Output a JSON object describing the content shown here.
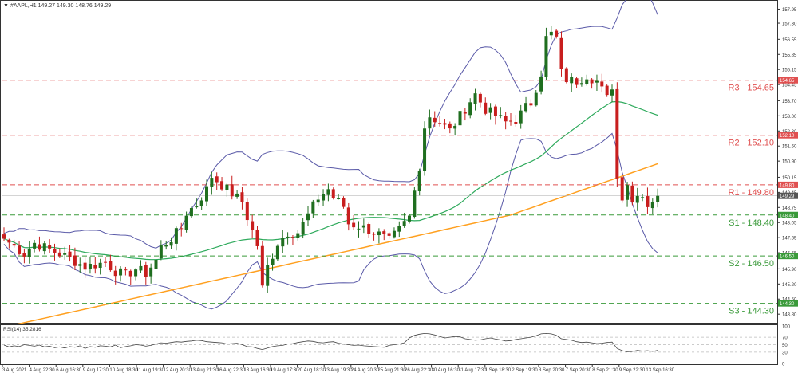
{
  "header": {
    "symbol_info": "#AAPL,H1  149.27 149.30 148.76 149.29",
    "rsi_label": "RSI(14) 35.2816"
  },
  "colors": {
    "up_candle": "#1f6e1f",
    "down_candle": "#c81e1e",
    "resistance": "#e05050",
    "support": "#3a9a3a",
    "bollinger": "#5a5aa8",
    "ma_fast": "#2eaa5c",
    "ma_slow": "#ffa020",
    "rsi_line": "#444444"
  },
  "chart_data": [
    {
      "type": "candlestick",
      "title": "#AAPL,H1",
      "ylim": [
        143.4,
        158.3
      ],
      "y_ticks": [
        157.95,
        157.3,
        156.55,
        155.85,
        155.15,
        154.45,
        153.7,
        153.0,
        152.3,
        151.6,
        150.9,
        150.15,
        149.45,
        148.75,
        148.05,
        147.35,
        146.65,
        145.9,
        145.2,
        144.5,
        143.8
      ],
      "x_tick_labels": [
        "3 Aug 2021",
        "4 Aug 22:30",
        "6 Aug 16:30",
        "9 Aug 17:30",
        "10 Aug 18:30",
        "11 Aug 19:30",
        "12 Aug 20:30",
        "13 Aug 21:30",
        "16 Aug 22:30",
        "18 Aug 16:30",
        "19 Aug 17:30",
        "20 Aug 18:30",
        "23 Aug 19:30",
        "24 Aug 20:30",
        "25 Aug 21:30",
        "26 Aug 22:30",
        "30 Aug 16:30",
        "31 Aug 17:30",
        "1 Sep 18:30",
        "2 Sep 19:30",
        "3 Sep 20:30",
        "7 Sep 20:30",
        "8 Sep 21:30",
        "9 Sep 22:30",
        "13 Sep 16:30"
      ],
      "levels": [
        {
          "label": "R3 - 154.65",
          "value": 154.65,
          "kind": "resistance",
          "tag": "154.65"
        },
        {
          "label": "R2 - 152.10",
          "value": 152.1,
          "kind": "resistance",
          "tag": "152.10"
        },
        {
          "label": "R1 - 149.80",
          "value": 149.8,
          "kind": "resistance",
          "tag": "149.80"
        },
        {
          "label": "S1 - 148.40",
          "value": 148.4,
          "kind": "support",
          "tag": "148.40"
        },
        {
          "label": "S2 - 146.50",
          "value": 146.5,
          "kind": "support",
          "tag": "146.50"
        },
        {
          "label": "S3 - 144.30",
          "value": 144.3,
          "kind": "support",
          "tag": "144.30"
        }
      ],
      "current_price": {
        "value": 149.29,
        "tag": "149.29"
      },
      "close_path": [
        [
          0,
          147.3
        ],
        [
          4,
          146.6
        ],
        [
          6,
          147.1
        ],
        [
          8,
          146.9
        ],
        [
          12,
          146.5
        ],
        [
          16,
          146.0
        ],
        [
          20,
          146.2
        ],
        [
          22,
          145.8
        ],
        [
          24,
          145.6
        ],
        [
          26,
          145.9
        ],
        [
          28,
          145.7
        ],
        [
          30,
          146.3
        ],
        [
          31,
          146.9
        ],
        [
          33,
          147.3
        ],
        [
          35,
          147.8
        ],
        [
          36,
          148.5
        ],
        [
          38,
          148.9
        ],
        [
          40,
          149.6
        ],
        [
          41,
          150.2
        ],
        [
          43,
          149.8
        ],
        [
          45,
          149.4
        ],
        [
          47,
          149.0
        ],
        [
          48,
          148.3
        ],
        [
          50,
          147.0
        ],
        [
          51,
          145.0
        ],
        [
          52,
          146.0
        ],
        [
          54,
          147.1
        ],
        [
          56,
          147.6
        ],
        [
          58,
          147.6
        ],
        [
          59,
          148.0
        ],
        [
          61,
          148.8
        ],
        [
          62,
          149.2
        ],
        [
          64,
          149.6
        ],
        [
          65,
          149.2
        ],
        [
          67,
          148.8
        ],
        [
          68,
          148.0
        ],
        [
          70,
          147.9
        ],
        [
          72,
          147.7
        ],
        [
          74,
          147.5
        ],
        [
          76,
          147.2
        ],
        [
          78,
          147.7
        ],
        [
          80,
          148.3
        ],
        [
          82,
          150.7
        ],
        [
          83,
          152.5
        ],
        [
          84,
          153.0
        ],
        [
          86,
          152.7
        ],
        [
          88,
          152.3
        ],
        [
          90,
          153.0
        ],
        [
          92,
          153.7
        ],
        [
          93,
          154.0
        ],
        [
          95,
          153.3
        ],
        [
          97,
          153.0
        ],
        [
          99,
          152.7
        ],
        [
          101,
          152.8
        ],
        [
          103,
          153.4
        ],
        [
          104,
          153.6
        ],
        [
          106,
          155.0
        ],
        [
          107,
          156.6
        ],
        [
          108,
          156.8
        ],
        [
          109,
          156.6
        ],
        [
          110,
          155.0
        ],
        [
          111,
          154.7
        ],
        [
          113,
          154.6
        ],
        [
          115,
          154.9
        ],
        [
          117,
          154.6
        ],
        [
          119,
          153.8
        ],
        [
          120,
          154.4
        ],
        [
          121,
          150.1
        ],
        [
          122,
          149.3
        ],
        [
          123,
          149.9
        ],
        [
          124,
          149.0
        ],
        [
          125,
          149.5
        ],
        [
          126,
          149.3
        ],
        [
          127,
          148.9
        ],
        [
          129,
          149.29
        ]
      ],
      "series": [
        {
          "name": "",
          "kind": "bollinger-upper"
        },
        {
          "name": "",
          "kind": "bollinger-middle"
        },
        {
          "name": "",
          "kind": "bollinger-lower"
        },
        {
          "name": "",
          "kind": "moving-average-fast"
        },
        {
          "name": "",
          "kind": "moving-average-slow"
        }
      ]
    },
    {
      "type": "line",
      "title": "RSI(14) 35.2816",
      "ylim": [
        0,
        100
      ],
      "y_ticks": [
        100,
        70,
        50,
        30,
        0
      ],
      "values": [
        49,
        44,
        47,
        45,
        50,
        48,
        46,
        49,
        44,
        46,
        42,
        44,
        41,
        45,
        43,
        47,
        40,
        45,
        43,
        47,
        46,
        44,
        49,
        42,
        45,
        47,
        50,
        49,
        46,
        48,
        52,
        55,
        54,
        56,
        58,
        57,
        59,
        60,
        62,
        61,
        58,
        57,
        56,
        55,
        52,
        53,
        54,
        50,
        45,
        44,
        40,
        37,
        41,
        45,
        47,
        48,
        52,
        53,
        56,
        58,
        60,
        59,
        56,
        55,
        57,
        58,
        54,
        52,
        50,
        48,
        49,
        47,
        46,
        45,
        44,
        43,
        48,
        50,
        52,
        55,
        68,
        75,
        78,
        80,
        79,
        76,
        72,
        68,
        70,
        72,
        71,
        66,
        64,
        62,
        63,
        66,
        68,
        65,
        63,
        60,
        61,
        64,
        66,
        68,
        70,
        74,
        79,
        80,
        79,
        75,
        66,
        64,
        62,
        58,
        56,
        57,
        55,
        53,
        54,
        56,
        57,
        40,
        34,
        31,
        32,
        35,
        33,
        34,
        32,
        35
      ]
    }
  ]
}
